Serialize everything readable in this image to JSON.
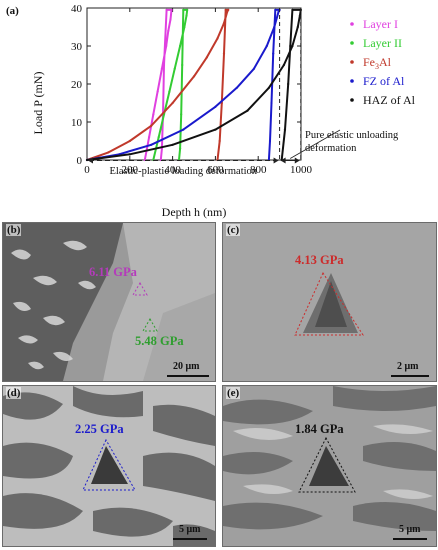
{
  "chart_data": {
    "type": "line",
    "panel_label": "(a)",
    "xlabel": "Depth h (nm)",
    "ylabel": "Load P (mN)",
    "xlim": [
      0,
      1000
    ],
    "ylim": [
      0,
      40
    ],
    "xticks": [
      0,
      200,
      400,
      600,
      800,
      1000
    ],
    "yticks": [
      0,
      10,
      20,
      30,
      40
    ],
    "grid": false,
    "legend_position": "right",
    "series": [
      {
        "name": "Layer I",
        "color": "#e040e0",
        "x": [
          270,
          290,
          310,
          330,
          350,
          370,
          380,
          390,
          395,
          372,
          360,
          355,
          350,
          345
        ],
        "y": [
          0,
          6,
          12,
          18,
          24,
          30,
          34,
          37,
          39.5,
          39.5,
          25,
          12,
          3,
          0
        ]
      },
      {
        "name": "Layer II",
        "color": "#33cc33",
        "x": [
          310,
          335,
          360,
          385,
          410,
          435,
          455,
          465,
          468,
          450,
          445,
          440,
          435,
          430
        ],
        "y": [
          0,
          6,
          12,
          18,
          24,
          30,
          35,
          38,
          39.5,
          39.5,
          25,
          12,
          3,
          0
        ]
      },
      {
        "name": "Fe3Al",
        "color": "#c0392b",
        "x": [
          0,
          100,
          200,
          300,
          400,
          500,
          560,
          610,
          640,
          655,
          660,
          648,
          640,
          630,
          620,
          610
        ],
        "y": [
          0,
          2,
          5,
          9,
          15,
          22,
          27,
          32,
          36,
          39,
          39.5,
          39.5,
          28,
          15,
          5,
          0
        ]
      },
      {
        "name": "FZ of Al",
        "color": "#1a1acc",
        "x": [
          0,
          150,
          300,
          450,
          600,
          700,
          780,
          840,
          875,
          895,
          900,
          880,
          870,
          862,
          855,
          850
        ],
        "y": [
          0,
          1.5,
          4,
          8,
          14,
          19,
          24,
          30,
          35,
          39,
          39.5,
          39.5,
          28,
          15,
          5,
          0
        ]
      },
      {
        "name": "HAZ of Al",
        "color": "#111111",
        "x": [
          0,
          200,
          400,
          600,
          750,
          850,
          920,
          960,
          985,
          995,
          999,
          960,
          950,
          940,
          925,
          910
        ],
        "y": [
          0,
          1.5,
          4,
          8,
          13,
          19,
          25,
          30,
          35,
          38,
          39.5,
          39.5,
          30,
          20,
          8,
          0
        ]
      }
    ],
    "annotations": [
      {
        "text": "Elastic-plastic loading deformation",
        "x_from": 0,
        "x_to": 900,
        "y": 0
      },
      {
        "text": "Pure elastic unloading deformation",
        "x_from": 900,
        "x_to": 999,
        "y": 0
      }
    ],
    "markers": [
      900,
      999
    ]
  },
  "panels": {
    "b": {
      "label": "(b)",
      "hardness_1": "6.11 GPa",
      "hardness_1_color": "#b43bbb",
      "hardness_2": "5.48 GPa",
      "hardness_2_color": "#2f9e2f",
      "scale": "20 μm"
    },
    "c": {
      "label": "(c)",
      "hardness": "4.13 GPa",
      "hardness_color": "#cc2b2b",
      "scale": "2 μm"
    },
    "d": {
      "label": "(d)",
      "hardness": "2.25 GPa",
      "hardness_color": "#1c1ccc",
      "scale": "5 μm"
    },
    "e": {
      "label": "(e)",
      "hardness": "1.84 GPa",
      "hardness_color": "#111111",
      "scale": "5 μm"
    }
  }
}
